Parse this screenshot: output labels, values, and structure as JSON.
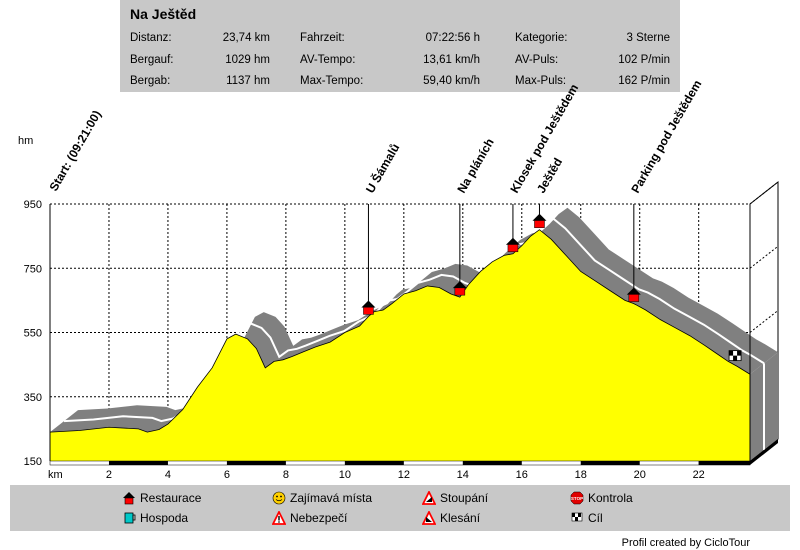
{
  "route": {
    "title": "Na Ještěd",
    "stats": [
      [
        {
          "label": "Distanz:",
          "value": "23,74 km"
        },
        {
          "label": "Fahrzeit:",
          "value": "07:22:56 h"
        },
        {
          "label": "Kategorie:",
          "value": "3 Sterne"
        }
      ],
      [
        {
          "label": "Bergauf:",
          "value": "1029 hm"
        },
        {
          "label": "AV-Tempo:",
          "value": "13,61 km/h"
        },
        {
          "label": "AV-Puls:",
          "value": "102 P/min"
        }
      ],
      [
        {
          "label": "Bergab:",
          "value": "1137 hm"
        },
        {
          "label": "Max-Tempo:",
          "value": "59,40 km/h"
        },
        {
          "label": "Max-Puls:",
          "value": "162 P/min"
        }
      ]
    ]
  },
  "chart_data": {
    "type": "area",
    "ylabel": "hm",
    "xlabel": "km",
    "xlim": [
      0,
      23.74
    ],
    "ylim": [
      150,
      950
    ],
    "y_ticks": [
      150,
      350,
      550,
      750,
      950
    ],
    "x_ticks": [
      2,
      4,
      6,
      8,
      10,
      12,
      14,
      16,
      18,
      20,
      22
    ],
    "grid": true,
    "x": [
      0,
      1,
      2,
      3,
      3.3,
      3.7,
      4,
      4.5,
      5,
      5.5,
      6,
      6.3,
      6.7,
      7,
      7.3,
      7.6,
      7.9,
      8.2,
      8.6,
      9,
      9.5,
      10,
      10.5,
      10.8,
      11,
      11.3,
      11.6,
      12,
      12.4,
      12.8,
      13.2,
      13.6,
      13.9,
      14.2,
      14.6,
      15,
      15.4,
      15.7,
      16,
      16.3,
      16.6,
      17,
      17.5,
      18,
      18.5,
      19,
      19.5,
      19.8,
      20.2,
      20.7,
      21.2,
      21.7,
      22.2,
      22.6,
      23,
      23.3,
      23.74
    ],
    "y": [
      240,
      245,
      255,
      250,
      240,
      248,
      265,
      310,
      380,
      440,
      530,
      545,
      530,
      500,
      440,
      460,
      465,
      475,
      490,
      505,
      520,
      550,
      570,
      600,
      615,
      620,
      640,
      670,
      680,
      695,
      690,
      670,
      660,
      700,
      740,
      770,
      790,
      795,
      820,
      850,
      870,
      840,
      790,
      740,
      710,
      680,
      650,
      640,
      620,
      590,
      565,
      540,
      510,
      485,
      460,
      445,
      420
    ],
    "area_color": "#ffff00",
    "waypoints": [
      {
        "km": 0,
        "label": "Start: (09:21:00)",
        "icon": "start"
      },
      {
        "km": 10.8,
        "label": "U Šámalů",
        "icon": "restaurace"
      },
      {
        "km": 13.9,
        "label": "Na pláních",
        "icon": "restaurace"
      },
      {
        "km": 15.7,
        "label": "Klosek pod Ještědem",
        "icon": "restaurace"
      },
      {
        "km": 16.6,
        "label": "Ještěd",
        "icon": "restaurace"
      },
      {
        "km": 19.8,
        "label": "Parking pod Ještědem",
        "icon": "restaurace"
      },
      {
        "km": 23.2,
        "label": "",
        "icon": "cil"
      }
    ]
  },
  "legend": [
    {
      "label": "Restaurace",
      "icon": "restaurace-icon"
    },
    {
      "label": "Hospoda",
      "icon": "hospoda-icon"
    },
    {
      "label": "Zajímavá místa",
      "icon": "smiley-icon"
    },
    {
      "label": "Nebezpečí",
      "icon": "danger-icon"
    },
    {
      "label": "Stoupání",
      "icon": "ascent-icon"
    },
    {
      "label": "Klesání",
      "icon": "descent-icon"
    },
    {
      "label": "Kontrola",
      "icon": "stop-icon"
    },
    {
      "label": "Cíl",
      "icon": "finish-flag-icon"
    }
  ],
  "credit": "Profil created by CicloTour",
  "colors": {
    "panel": "#c8c8c8",
    "area": "#ffff00",
    "shadow": "#808080",
    "marker": "#ff0000"
  }
}
